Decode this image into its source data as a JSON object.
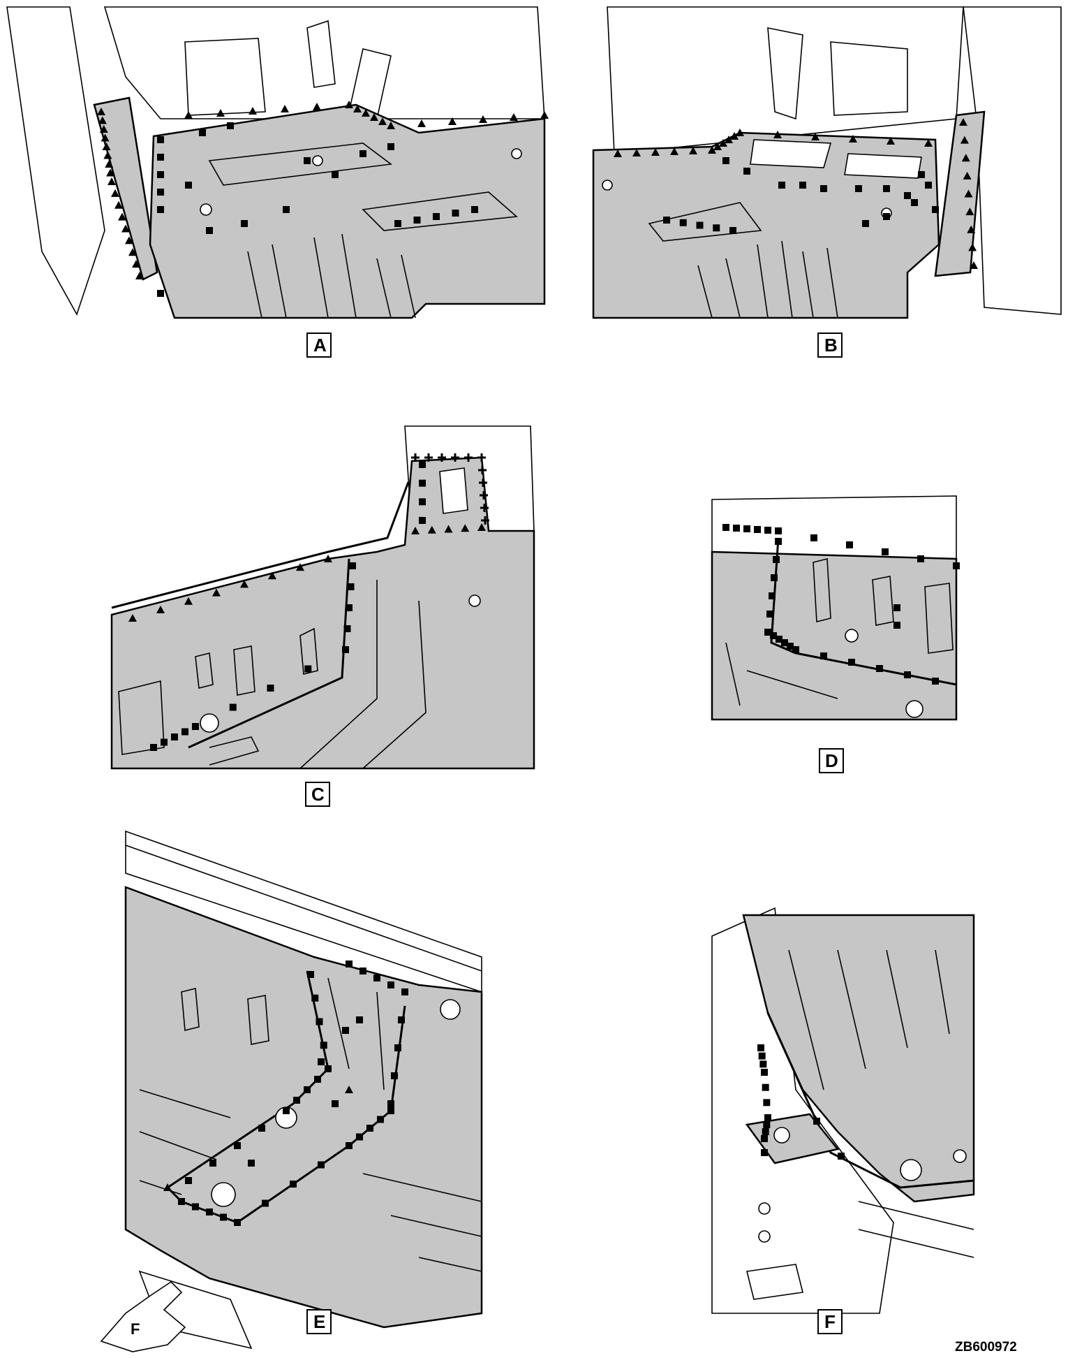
{
  "figure": {
    "reference_code": "ZB600972",
    "panels": [
      {
        "id": "A",
        "label": "A"
      },
      {
        "id": "B",
        "label": "B"
      },
      {
        "id": "C",
        "label": "C"
      },
      {
        "id": "D",
        "label": "D"
      },
      {
        "id": "E",
        "label": "E"
      },
      {
        "id": "F",
        "label": "F"
      }
    ],
    "view_arrow": {
      "label": "F"
    }
  },
  "colors": {
    "panel_fill": "#c6c6c6",
    "outline": "#000000",
    "background": "#ffffff"
  },
  "markers": {
    "types": [
      "square",
      "triangle",
      "cross-hatch"
    ]
  }
}
